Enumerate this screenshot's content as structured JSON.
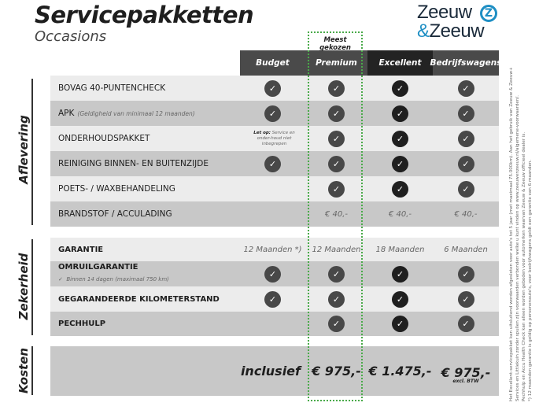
{
  "header": {
    "title": "Servicepakketten",
    "subtitle": "Occasions",
    "logo_line1": "Zeeuw",
    "logo_amp": "&",
    "logo_line2": "Zeeuw",
    "logo_mark": "Z"
  },
  "highlight": {
    "label": "Meest gekozen",
    "color": "#4aaa4a"
  },
  "columns": [
    {
      "label": "Budget",
      "color": "#4a4a4a"
    },
    {
      "label": "Premium",
      "color": "#4a4a4a"
    },
    {
      "label": "Excellent",
      "color": "#232323"
    },
    {
      "label": "Bedrijfswagens",
      "color": "#4a4a4a"
    }
  ],
  "sections": {
    "aflevering": "Aflevering",
    "zekerheid": "Zekerheid",
    "kosten": "Kosten"
  },
  "rows": {
    "bovag": {
      "label": "BOVAG 40-PUNTENCHECK"
    },
    "apk": {
      "label": "APK",
      "sub": "(Geldigheid van minimaal 12 maanden)"
    },
    "onderhoud": {
      "label": "ONDERHOUDSPAKKET",
      "note_bold": "Let op:",
      "note": "Service en onder-houd niet inbegrepen"
    },
    "reiniging": {
      "label": "REINIGING BINNEN- EN BUITENZIJDE"
    },
    "poets": {
      "label": "POETS- / WAXBEHANDELING"
    },
    "brandstof": {
      "label": "BRANDSTOF / ACCULADING",
      "values": [
        "",
        "€ 40,-",
        "€ 40,-",
        "€ 40,-"
      ]
    },
    "garantie": {
      "label": "GARANTIE",
      "values": [
        "12 Maanden *)",
        "12 Maanden",
        "18 Maanden",
        "6 Maanden"
      ]
    },
    "omruil": {
      "label": "OMRUILGARANTIE",
      "sub": "Binnen 14 dagen (maximaal 750 km)"
    },
    "km": {
      "label": "GEGARANDEERDE KILOMETERSTAND"
    },
    "pechhulp": {
      "label": "PECHHULP"
    },
    "kosten": {
      "values": [
        "inclusief",
        "€ 975,-",
        "€ 1.475,-",
        "€ 975,-"
      ],
      "excl": "excl. BTW"
    }
  },
  "footnotes": [
    "Het Excellent-servicepakket kan uitsluitend worden afgesloten voor auto's tot 5 jaar (met maximaal 75.000km). Aan het gebruik van Zeeuw & Zeeuw+",
    "Services en Littlekuin zonder spullen zijn voorwaarden verbonden welke u kunt vinden op www.zeeuwenzeeuw.nl/algemene-voorwaarden/.",
    "Pechhulp en Accu Health Check kan alleen worden geboden voor automerken waarvan Zeeuw & Zeeuw officieel dealer is.",
    "*) 12 maanden garantie is geldig op personenauto's, voor bedrijfswagens geldt een garantie van 6 maanden."
  ]
}
